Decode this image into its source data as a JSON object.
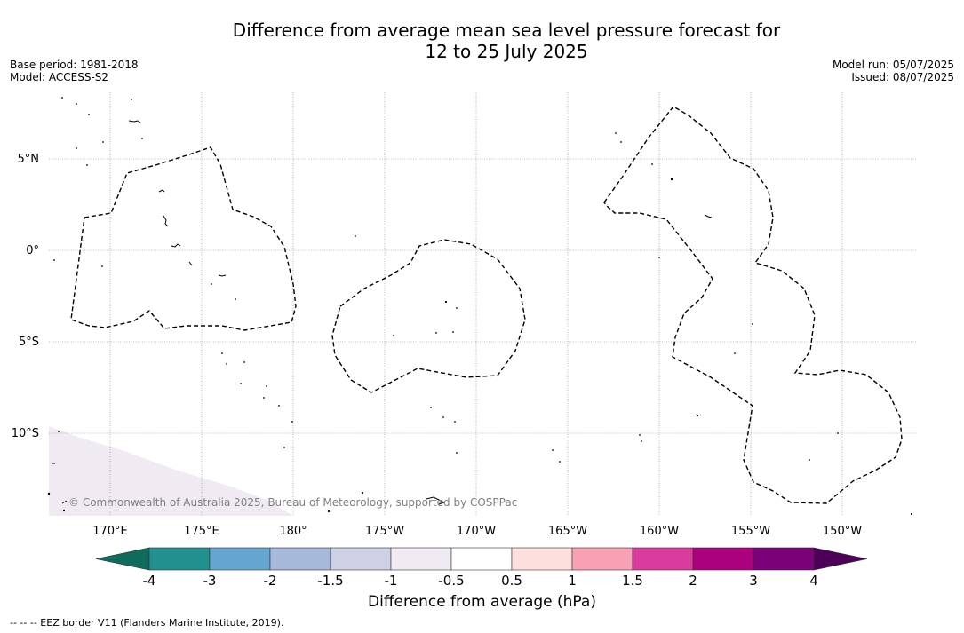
{
  "title_line1": "Difference from average mean sea level pressure forecast for",
  "title_line2": "12 to 25 July 2025",
  "meta_left": [
    "Base period: 1981-2018",
    "Model: ACCESS-S2"
  ],
  "meta_right": [
    "Model run: 05/07/2025",
    "Issued: 08/07/2025"
  ],
  "map": {
    "lat_labels": [
      "5°N",
      "0°",
      "5°S",
      "10°S"
    ],
    "lon_labels": [
      "170°E",
      "175°E",
      "180°",
      "175°W",
      "170°W",
      "165°W",
      "160°W",
      "155°W",
      "150°W"
    ],
    "copyright": "© Commonwealth of Australia 2025, Bureau of Meteorology, supported by COSPPac",
    "shaded_region_color": "#f0ebf2",
    "eez_line_style": "dashed"
  },
  "colorbar": {
    "title": "Difference from average (hPa)",
    "ticks": [
      "-4",
      "-3",
      "-2",
      "-1.5",
      "-1",
      "-0.5",
      "0.5",
      "1",
      "1.5",
      "2",
      "3",
      "4"
    ],
    "colors": [
      "#0f6b5c",
      "#21908e",
      "#64a6d0",
      "#a6b9db",
      "#ced0e6",
      "#f0ebf2",
      "#ffffff",
      "#fde0dd",
      "#f8a0b4",
      "#d93c9d",
      "#ac017e",
      "#7a0177",
      "#4d0058"
    ]
  },
  "footer": "--  --  -- EEZ border V11 (Flanders Marine Institute, 2019)."
}
